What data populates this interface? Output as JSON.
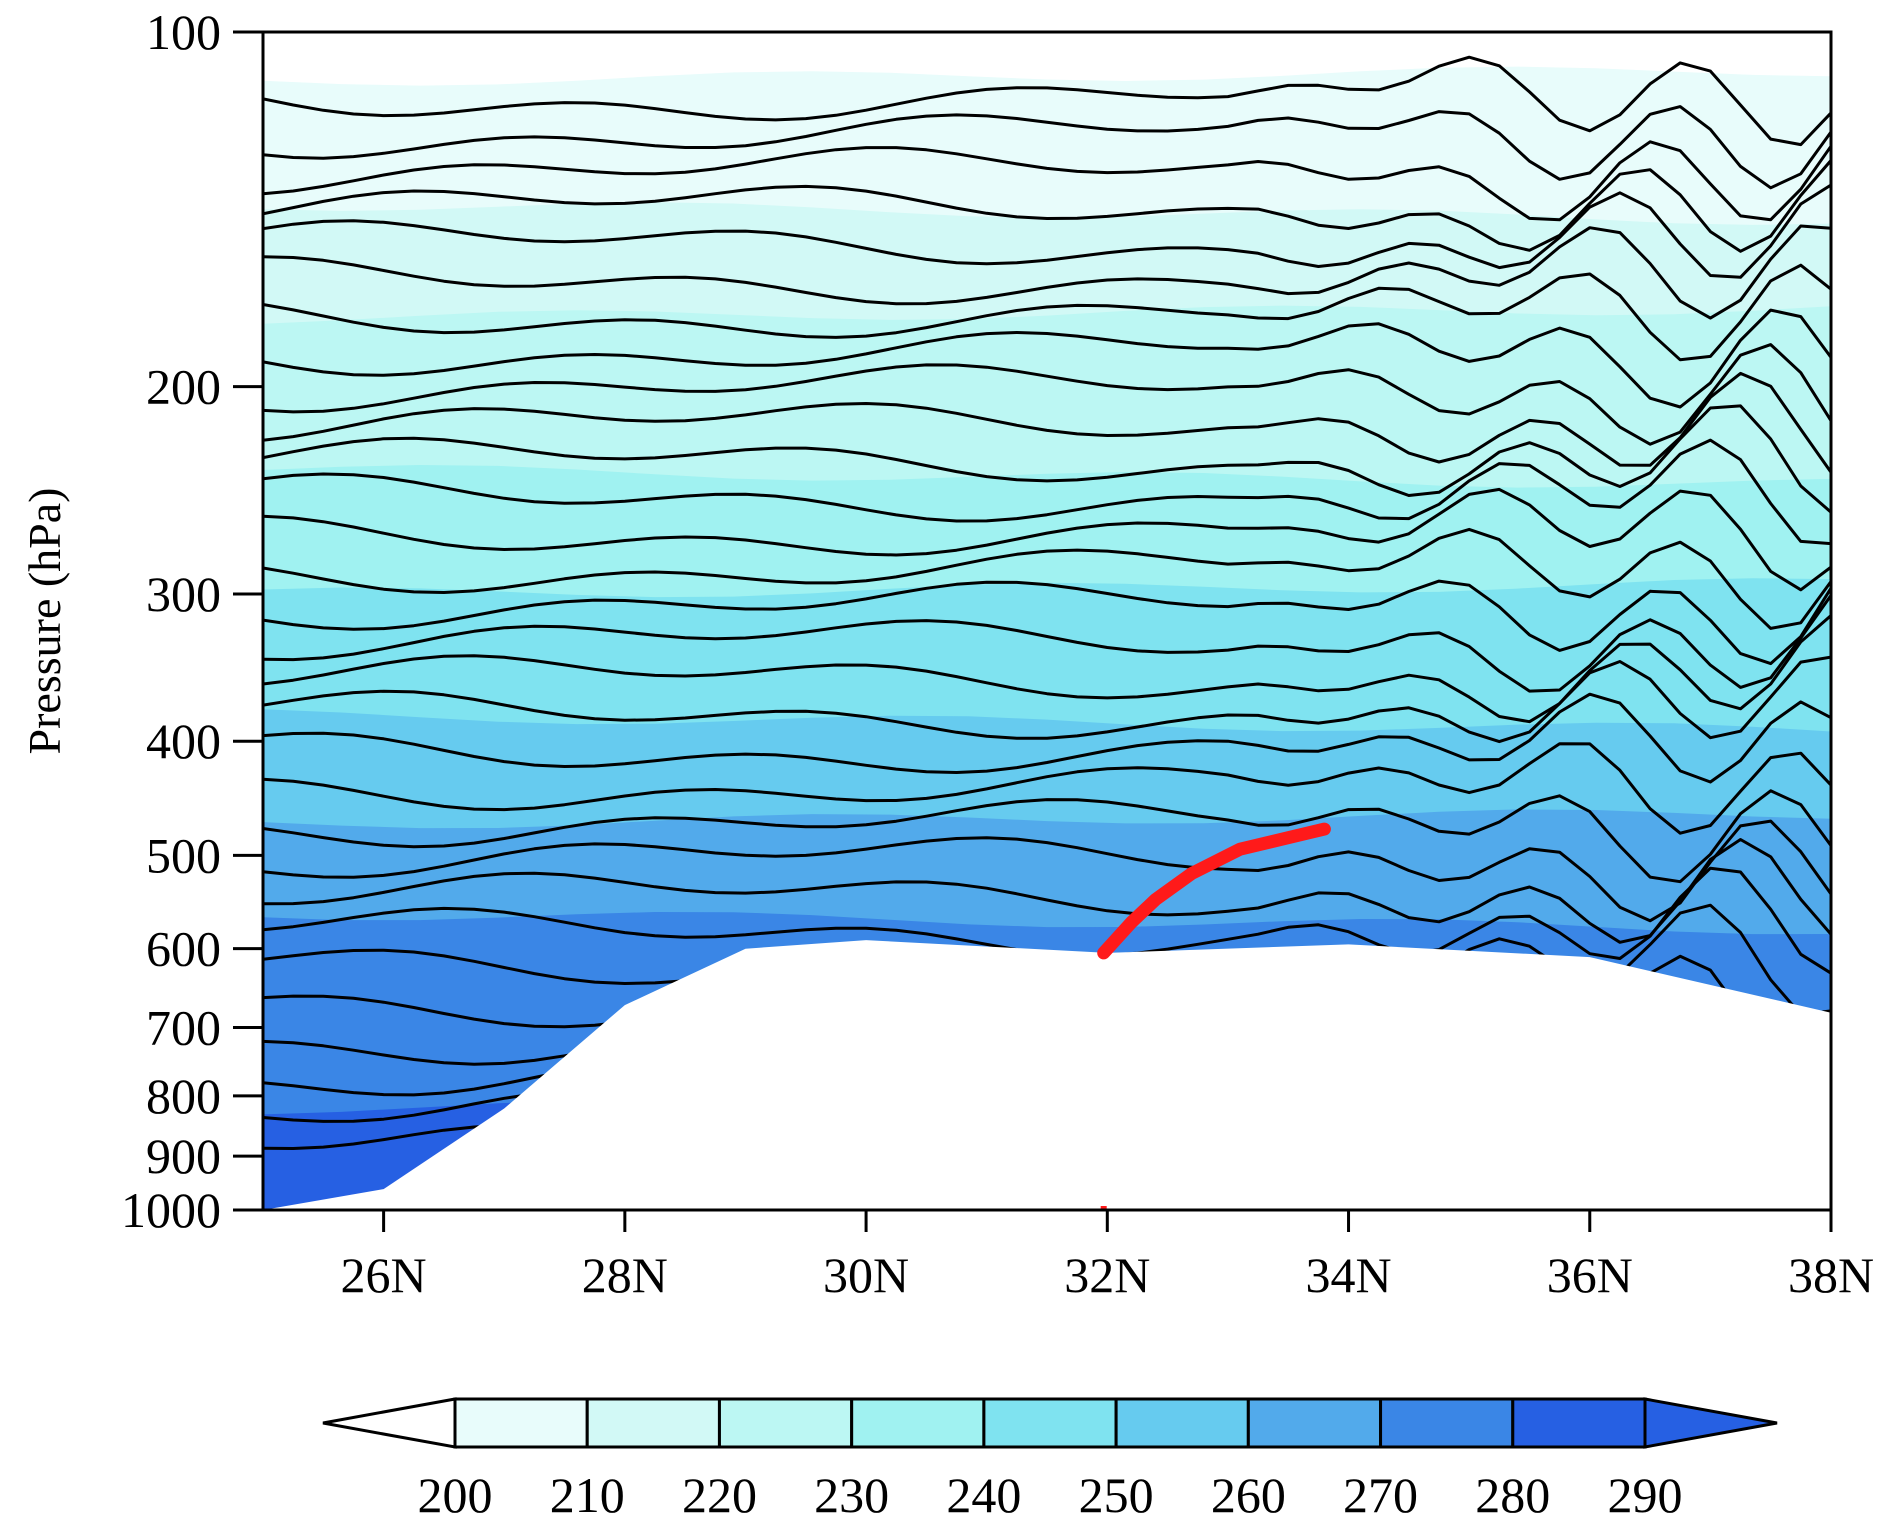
{
  "chart_data": {
    "type": "heatmap",
    "description_type": "pressure-latitude cross section, filled contours with black contour lines",
    "ylabel": "Pressure (hPa)",
    "xlabel": "",
    "title": "",
    "x_range": [
      25,
      38
    ],
    "x_ticks": [
      {
        "value": 26,
        "label": "26N"
      },
      {
        "value": 28,
        "label": "28N"
      },
      {
        "value": 30,
        "label": "30N"
      },
      {
        "value": 32,
        "label": "32N"
      },
      {
        "value": 34,
        "label": "34N"
      },
      {
        "value": 36,
        "label": "36N"
      },
      {
        "value": 38,
        "label": "38N"
      }
    ],
    "y_scale": "log",
    "y_range": [
      1000,
      100
    ],
    "y_ticks": [
      {
        "value": 100,
        "label": "100"
      },
      {
        "value": 200,
        "label": "200"
      },
      {
        "value": 300,
        "label": "300"
      },
      {
        "value": 400,
        "label": "400"
      },
      {
        "value": 500,
        "label": "500"
      },
      {
        "value": 600,
        "label": "600"
      },
      {
        "value": 700,
        "label": "700"
      },
      {
        "value": 800,
        "label": "800"
      },
      {
        "value": 900,
        "label": "900"
      },
      {
        "value": 1000,
        "label": "1000"
      }
    ],
    "colorbar": {
      "levels": [
        200,
        210,
        220,
        230,
        240,
        250,
        260,
        270,
        280,
        290
      ],
      "labels": [
        "200",
        "210",
        "220",
        "230",
        "240",
        "250",
        "260",
        "270",
        "280",
        "290"
      ],
      "colors": [
        "#ffffff",
        "#e8fcfb",
        "#d2f9f6",
        "#bcf7f3",
        "#a0f2f1",
        "#7fe3f0",
        "#66cbef",
        "#52aaeb",
        "#3a86e6",
        "#2660e3"
      ]
    },
    "color_bands": [
      {
        "level": 210,
        "pressure_top": 110
      },
      {
        "level": 220,
        "pressure_top": 140
      },
      {
        "level": 230,
        "pressure_top": 175
      },
      {
        "level": 240,
        "pressure_top": 235
      },
      {
        "level": 250,
        "pressure_top": 300
      },
      {
        "level": 260,
        "pressure_top": 380
      },
      {
        "level": 270,
        "pressure_top": 470
      },
      {
        "level": 280,
        "pressure_top": 560
      },
      {
        "level": 290,
        "pressure_top": 820
      }
    ],
    "terrain_profile": [
      {
        "lat": 25.0,
        "p": 1000
      },
      {
        "lat": 26.0,
        "p": 960
      },
      {
        "lat": 27.0,
        "p": 820
      },
      {
        "lat": 28.0,
        "p": 670
      },
      {
        "lat": 29.0,
        "p": 600
      },
      {
        "lat": 30.0,
        "p": 590
      },
      {
        "lat": 32.0,
        "p": 605
      },
      {
        "lat": 34.0,
        "p": 595
      },
      {
        "lat": 36.0,
        "p": 610
      },
      {
        "lat": 38.0,
        "p": 680
      }
    ],
    "red_line": [
      {
        "lat": 31.97,
        "p": 605
      },
      {
        "lat": 32.2,
        "p": 570
      },
      {
        "lat": 32.4,
        "p": 545
      },
      {
        "lat": 32.7,
        "p": 518
      },
      {
        "lat": 33.1,
        "p": 494
      },
      {
        "lat": 33.5,
        "p": 483
      },
      {
        "lat": 33.8,
        "p": 475
      }
    ],
    "contour_line_count": 30,
    "contour_color": "#000000",
    "red_line_color": "#ff1a1a"
  }
}
